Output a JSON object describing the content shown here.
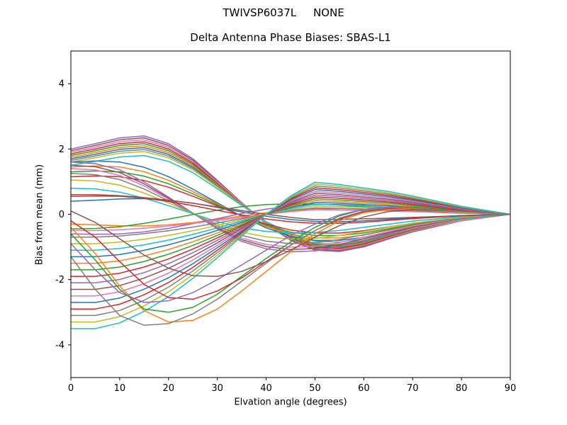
{
  "figure": {
    "suptitle": "TWIVSP6037L     NONE"
  },
  "chart_data": {
    "type": "line",
    "title": "Delta Antenna Phase Biases: SBAS-L1",
    "xlabel": "Elvation angle (degrees)",
    "ylabel": "Bias from mean (mm)",
    "xlim": [
      0,
      90
    ],
    "ylim": [
      -5,
      5
    ],
    "x_ticks": [
      0,
      10,
      20,
      30,
      40,
      50,
      60,
      70,
      80,
      90
    ],
    "y_ticks": [
      -4,
      -2,
      0,
      2,
      4
    ],
    "grid": false,
    "legend_position": "none",
    "line_width": 1.5,
    "axis_color": "#000000",
    "palette": [
      "#1f77b4",
      "#ff7f0e",
      "#2ca02c",
      "#d62728",
      "#9467bd",
      "#8c564b",
      "#e377c2",
      "#7f7f7f",
      "#bcbd22",
      "#17becf"
    ],
    "x": [
      0,
      5,
      10,
      15,
      20,
      25,
      30,
      35,
      40,
      45,
      50,
      55,
      60,
      65,
      70,
      80,
      90
    ],
    "basis_shapes": {
      "s1": [
        1.0,
        1.08,
        1.17,
        1.2,
        1.08,
        0.85,
        0.52,
        0.18,
        -0.15,
        -0.4,
        -0.55,
        -0.57,
        -0.5,
        -0.38,
        -0.27,
        -0.1,
        0.0
      ],
      "s2": [
        1.0,
        1.0,
        0.95,
        0.85,
        0.72,
        0.56,
        0.38,
        0.19,
        0.0,
        -0.16,
        -0.28,
        -0.26,
        -0.23,
        -0.2,
        -0.16,
        -0.07,
        0.0
      ],
      "s3": [
        1.0,
        0.97,
        0.85,
        0.62,
        0.33,
        0.02,
        -0.28,
        -0.52,
        -0.66,
        -0.72,
        -0.7,
        -0.62,
        -0.5,
        -0.38,
        -0.26,
        -0.08,
        0.0
      ],
      "s4": [
        1.0,
        1.02,
        1.0,
        0.9,
        0.72,
        0.48,
        0.22,
        -0.04,
        -0.26,
        -0.42,
        -0.5,
        -0.5,
        -0.44,
        -0.34,
        -0.24,
        -0.08,
        0.0
      ]
    },
    "series": [
      {
        "c": 0,
        "shape": "s1",
        "scale": 1.7
      },
      {
        "c": 1,
        "shape": "s1",
        "scale": 1.75
      },
      {
        "c": 2,
        "shape": "s1",
        "scale": 1.8
      },
      {
        "c": 3,
        "shape": "s1",
        "scale": 1.85
      },
      {
        "c": 4,
        "shape": "s1",
        "scale": 2.0
      },
      {
        "c": 5,
        "shape": "s1",
        "scale": 1.95
      },
      {
        "c": 6,
        "shape": "s1",
        "scale": 1.9
      },
      {
        "c": 7,
        "shape": "s1",
        "scale": 1.65
      },
      {
        "c": 8,
        "shape": "s1",
        "scale": 1.6
      },
      {
        "c": 9,
        "shape": "s1",
        "scale": 1.5
      },
      {
        "c": 0,
        "shape": "s4",
        "scale": 1.6
      },
      {
        "c": 1,
        "shape": "s4",
        "scale": 1.45
      },
      {
        "c": 2,
        "shape": "s4",
        "scale": 1.3
      },
      {
        "c": 3,
        "shape": "s4",
        "scale": 1.15
      },
      {
        "c": 4,
        "shape": "s3",
        "scale": 1.6
      },
      {
        "c": 5,
        "shape": "s3",
        "scale": 1.5
      },
      {
        "c": 6,
        "shape": "s3",
        "scale": 1.4
      },
      {
        "c": 7,
        "shape": "s3",
        "scale": 1.25
      },
      {
        "c": 8,
        "shape": "s3",
        "scale": 1.05
      },
      {
        "c": 9,
        "shape": "s3",
        "scale": 0.8
      },
      {
        "c": 0,
        "shape": "s1",
        "scale": 0.4
      },
      {
        "c": 1,
        "shape": "s1",
        "scale": -0.3
      },
      {
        "c": 2,
        "shape": "s3",
        "scale": -0.45
      },
      {
        "c": 3,
        "shape": "s4",
        "scale": 0.55
      },
      {
        "c": 4,
        "shape": "s4",
        "scale": -0.6
      },
      {
        "c": 5,
        "shape": "s2",
        "scale": 0.6
      },
      {
        "c": 6,
        "shape": "s2",
        "scale": -0.5
      },
      {
        "c": 7,
        "shape": "s2",
        "scale": -0.7
      },
      {
        "c": 8,
        "shape": "s2",
        "scale": -0.9
      },
      {
        "c": 9,
        "shape": "s2",
        "scale": -1.1
      },
      {
        "c": 0,
        "shape": "s2",
        "scale": -1.3
      },
      {
        "c": 1,
        "shape": "s2",
        "scale": -1.5
      },
      {
        "c": 2,
        "shape": "s2",
        "scale": -1.7
      },
      {
        "c": 3,
        "shape": "s2",
        "scale": -1.9
      },
      {
        "c": 4,
        "shape": "s2",
        "scale": -2.1
      },
      {
        "c": 5,
        "shape": "s2",
        "scale": -2.3
      },
      {
        "c": 6,
        "shape": "s2",
        "scale": -2.5
      },
      {
        "c": 0,
        "shape": "s2",
        "scale": -2.7
      },
      {
        "c": 3,
        "shape": "s2",
        "scale": -2.9
      },
      {
        "c": 7,
        "shape": "s2",
        "scale": -3.1
      },
      {
        "c": 8,
        "shape": "s2",
        "scale": -3.3
      },
      {
        "c": 9,
        "shape": "s2",
        "scale": -3.5
      },
      {
        "c": 1,
        "y": [
          -0.4,
          -1.2,
          -2.2,
          -2.95,
          -3.3,
          -3.25,
          -2.9,
          -2.35,
          -1.75,
          -1.15,
          -0.6,
          -0.2,
          0.05,
          0.15,
          0.18,
          0.1,
          0.0
        ]
      },
      {
        "c": 2,
        "y": [
          -0.6,
          -1.4,
          -2.3,
          -2.9,
          -3.0,
          -2.85,
          -2.45,
          -1.9,
          -1.35,
          -0.85,
          -0.4,
          -0.05,
          0.15,
          0.22,
          0.22,
          0.1,
          0.0
        ]
      },
      {
        "c": 3,
        "y": [
          -0.2,
          -0.7,
          -1.45,
          -2.15,
          -2.55,
          -2.6,
          -2.35,
          -1.95,
          -1.45,
          -0.95,
          -0.5,
          -0.15,
          0.08,
          0.18,
          0.2,
          0.1,
          0.0
        ]
      },
      {
        "c": 4,
        "y": [
          -0.9,
          -1.7,
          -2.4,
          -2.7,
          -2.65,
          -2.4,
          -2.0,
          -1.55,
          -1.1,
          -0.65,
          -0.3,
          -0.02,
          0.15,
          0.22,
          0.2,
          0.08,
          0.0
        ]
      },
      {
        "c": 5,
        "y": [
          0.1,
          -0.25,
          -0.75,
          -1.25,
          -1.65,
          -1.88,
          -1.9,
          -1.75,
          -1.45,
          -1.1,
          -0.7,
          -0.35,
          -0.08,
          0.08,
          0.15,
          0.08,
          0.0
        ]
      },
      {
        "c": 7,
        "y": [
          -1.3,
          -2.3,
          -3.1,
          -3.4,
          -3.35,
          -3.05,
          -2.6,
          -2.05,
          -1.5,
          -0.95,
          -0.5,
          -0.12,
          0.1,
          0.2,
          0.2,
          0.08,
          0.0
        ]
      }
    ]
  }
}
